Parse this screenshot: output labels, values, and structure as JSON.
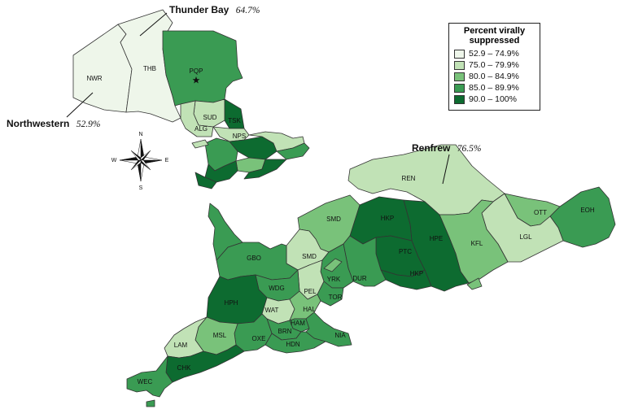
{
  "map": {
    "legend": {
      "title_line1": "Percent virally",
      "title_line2": "suppressed",
      "classes": [
        {
          "label": "52.9 – 74.9%",
          "color": "#eef6ea"
        },
        {
          "label": "75.0 – 79.9%",
          "color": "#c1e2b6"
        },
        {
          "label": "80.0 – 84.9%",
          "color": "#79c27a"
        },
        {
          "label": "85.0 – 89.9%",
          "color": "#3a9b53"
        },
        {
          "label": "90.0 – 100%",
          "color": "#0d6b30"
        }
      ]
    },
    "callouts": [
      {
        "name": "Thunder Bay",
        "value": "64.7%"
      },
      {
        "name": "Northwestern",
        "value": "52.9%"
      },
      {
        "name": "Renfrew",
        "value": "76.5%"
      }
    ],
    "compass": {
      "n": "N",
      "s": "S",
      "e": "E",
      "w": "W"
    },
    "regions": {
      "NWR": {
        "label": "NWR",
        "class": 0
      },
      "THB": {
        "label": "THB",
        "class": 0
      },
      "PQP": {
        "label": "PQP",
        "class": 3
      },
      "SUD": {
        "label": "SUD",
        "class": 1
      },
      "ALG": {
        "label": "ALG",
        "class": 1
      },
      "TSK": {
        "label": "TSK",
        "class": 4
      },
      "NPS": {
        "label": "NPS",
        "class": 1
      },
      "REN": {
        "label": "REN",
        "class": 1
      },
      "OTT": {
        "label": "OTT",
        "class": 2
      },
      "EOH": {
        "label": "EOH",
        "class": 3
      },
      "LGL": {
        "label": "LGL",
        "class": 1
      },
      "KFL": {
        "label": "KFL",
        "class": 2
      },
      "HKP_N": {
        "label": "HKP",
        "class": 4
      },
      "HPE": {
        "label": "HPE",
        "class": 4
      },
      "PTC": {
        "label": "PTC",
        "class": 4
      },
      "HKP_S": {
        "label": "HKP",
        "class": 4
      },
      "SMD_N": {
        "label": "SMD",
        "class": 2
      },
      "SMD_S": {
        "label": "SMD",
        "class": 1
      },
      "GBO": {
        "label": "GBO",
        "class": 3
      },
      "DUR": {
        "label": "DUR",
        "class": 3
      },
      "YRK": {
        "label": "YRK",
        "class": 3
      },
      "PEL": {
        "label": "PEL",
        "class": 1
      },
      "TOR": {
        "label": "TOR",
        "class": 3
      },
      "WDG": {
        "label": "WDG",
        "class": 3
      },
      "HPH": {
        "label": "HPH",
        "class": 4
      },
      "WAT": {
        "label": "WAT",
        "class": 1
      },
      "HAL": {
        "label": "HAL",
        "class": 2
      },
      "HAM": {
        "label": "HAM",
        "class": 3
      },
      "BRN": {
        "label": "BRN",
        "class": 3
      },
      "NIA": {
        "label": "NIA",
        "class": 3
      },
      "HDN": {
        "label": "HDN",
        "class": 3
      },
      "OXE": {
        "label": "OXE",
        "class": 3
      },
      "MSL": {
        "label": "MSL",
        "class": 2
      },
      "LAM": {
        "label": "LAM",
        "class": 1
      },
      "CHK": {
        "label": "CHK",
        "class": 4
      },
      "WEC": {
        "label": "WEC",
        "class": 3
      }
    }
  }
}
